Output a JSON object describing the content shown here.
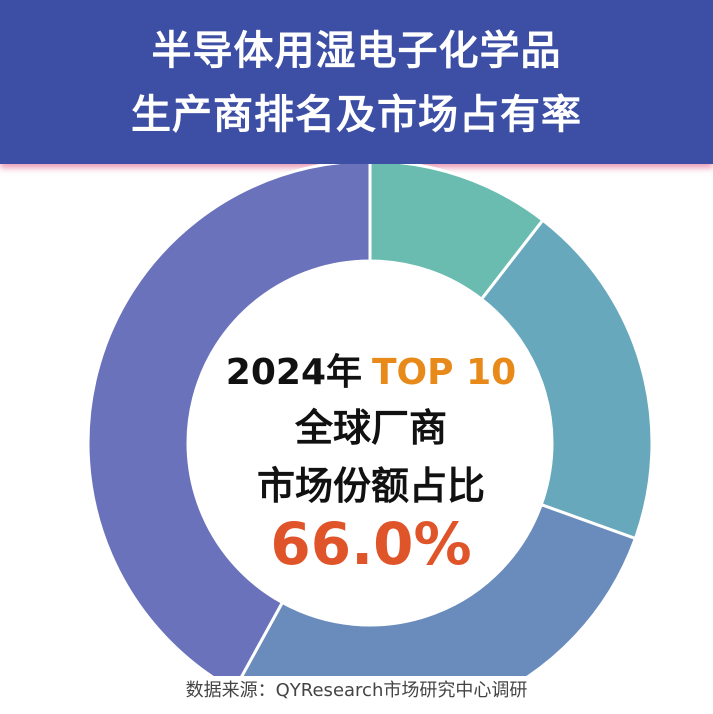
{
  "header": {
    "title_line1": "半导体用湿电子化学品",
    "title_line2": "生产商排名及市场占有率"
  },
  "center": {
    "year": "2024年",
    "top_label": "TOP 10",
    "line2": "全球厂商",
    "line3": "市场份额占比",
    "value": "66.0%"
  },
  "source": "数据来源：QYResearch市场研究中心调研",
  "chart_data": {
    "type": "pie",
    "donut": true,
    "slices": [
      {
        "value": 10.5,
        "color": "#6abcb0"
      },
      {
        "value": 20.0,
        "color": "#68a8bc"
      },
      {
        "value": 27.5,
        "color": "#6a8cbc"
      },
      {
        "value": 42.0,
        "color": "#6a72bc"
      }
    ]
  }
}
